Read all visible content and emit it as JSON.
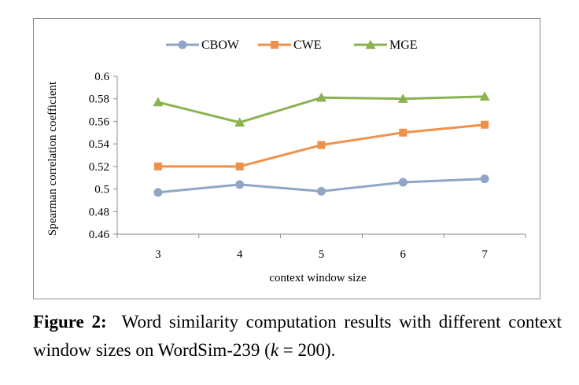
{
  "chart_data": {
    "type": "line",
    "title": "",
    "xlabel": "context window size",
    "ylabel": "Spearman correlation coefficient",
    "categories": [
      "3",
      "4",
      "5",
      "6",
      "7"
    ],
    "ylim": [
      0.46,
      0.6
    ],
    "yticks": [
      "0.46",
      "0.48",
      "0.5",
      "0.52",
      "0.54",
      "0.56",
      "0.58",
      "0.6"
    ],
    "legend_position": "top-center",
    "grid": false,
    "series": [
      {
        "name": "CBOW",
        "color": "#8fa6c6",
        "marker": "circle",
        "values": [
          0.497,
          0.504,
          0.498,
          0.506,
          0.509
        ]
      },
      {
        "name": "CWE",
        "color": "#f0914a",
        "marker": "square",
        "values": [
          0.52,
          0.52,
          0.539,
          0.55,
          0.557
        ]
      },
      {
        "name": "MGE",
        "color": "#8cb250",
        "marker": "triangle",
        "values": [
          0.577,
          0.559,
          0.581,
          0.58,
          0.582
        ]
      }
    ]
  },
  "caption": {
    "label": "Figure 2:",
    "text_before_k": "Word similarity computation results with different context window sizes on WordSim-239 (",
    "k": "k",
    "text_after_k": " = 200)."
  }
}
